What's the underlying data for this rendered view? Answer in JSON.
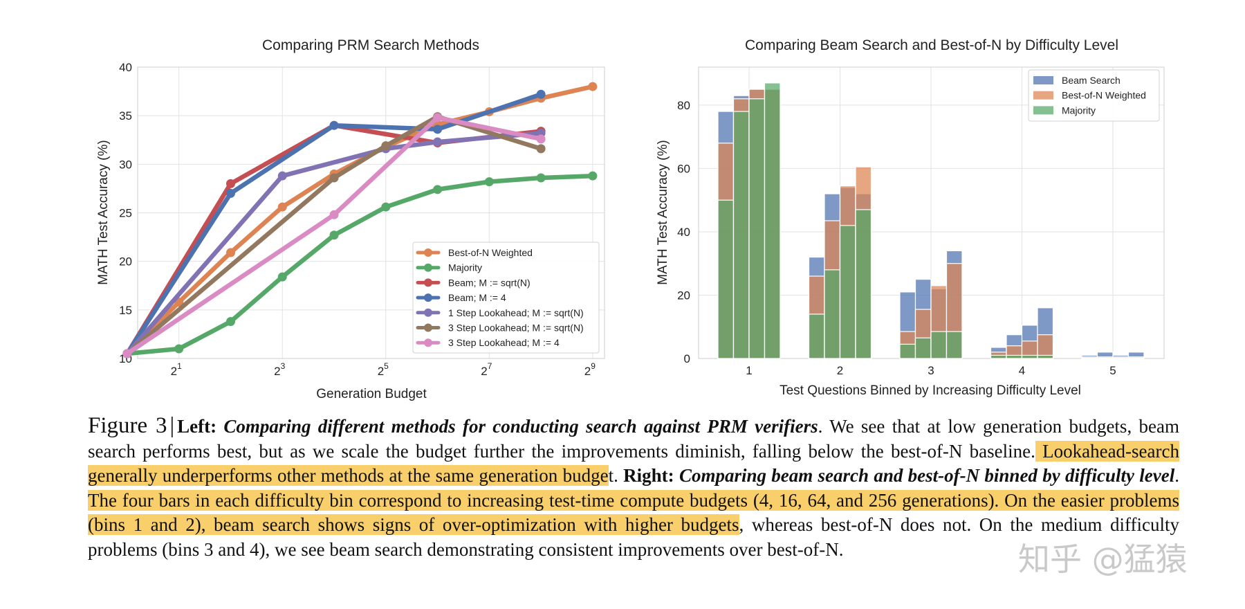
{
  "chart_data": [
    {
      "type": "line",
      "title": "Comparing PRM Search Methods",
      "xlabel": "Generation Budget",
      "ylabel": "MATH Test Accuracy (%)",
      "x_scale": "log2",
      "x": [
        1,
        4,
        16,
        64,
        256
      ],
      "x_ticks": [
        {
          "value": 2,
          "base": "2",
          "exp": "1"
        },
        {
          "value": 8,
          "base": "2",
          "exp": "3"
        },
        {
          "value": 32,
          "base": "2",
          "exp": "5"
        },
        {
          "value": 128,
          "base": "2",
          "exp": "7"
        },
        {
          "value": 512,
          "base": "2",
          "exp": "9"
        }
      ],
      "xlim": [
        1.15,
        600
      ],
      "ylim": [
        10,
        40
      ],
      "y_ticks": [
        10,
        15,
        20,
        25,
        30,
        35,
        40
      ],
      "grid": true,
      "legend_position": "bottom-right",
      "series": [
        {
          "name": "Best-of-N Weighted",
          "color": "#dd8452",
          "points": [
            [
              1,
              10.5
            ],
            [
              2,
              15.8
            ],
            [
              4,
              20.9
            ],
            [
              8,
              25.6
            ],
            [
              16,
              29.0
            ],
            [
              32,
              31.8
            ],
            [
              64,
              34.1
            ],
            [
              128,
              35.4
            ],
            [
              256,
              36.8
            ],
            [
              512,
              38.0
            ]
          ]
        },
        {
          "name": "Majority",
          "color": "#55a868",
          "points": [
            [
              1,
              10.5
            ],
            [
              2,
              11.0
            ],
            [
              4,
              13.8
            ],
            [
              8,
              18.4
            ],
            [
              16,
              22.7
            ],
            [
              32,
              25.6
            ],
            [
              64,
              27.4
            ],
            [
              128,
              28.2
            ],
            [
              256,
              28.6
            ],
            [
              512,
              28.8
            ]
          ]
        },
        {
          "name": "Beam; M := sqrt(N)",
          "color": "#c44e52",
          "points": [
            [
              1,
              10.5
            ],
            [
              4,
              28.0
            ],
            [
              16,
              34.0
            ],
            [
              64,
              32.2
            ],
            [
              256,
              33.4
            ]
          ]
        },
        {
          "name": "Beam; M := 4",
          "color": "#4c72b0",
          "points": [
            [
              1,
              10.5
            ],
            [
              4,
              27.0
            ],
            [
              16,
              34.0
            ],
            [
              64,
              33.6
            ],
            [
              256,
              37.2
            ]
          ]
        },
        {
          "name": "1 Step Lookahead; M := sqrt(N)",
          "color": "#8172b3",
          "points": [
            [
              1,
              10.5
            ],
            [
              8,
              28.8
            ],
            [
              32,
              31.6
            ],
            [
              64,
              32.3
            ],
            [
              256,
              33.2
            ]
          ]
        },
        {
          "name": "3 Step Lookahead; M := sqrt(N)",
          "color": "#937860",
          "points": [
            [
              1,
              10.5
            ],
            [
              16,
              28.6
            ],
            [
              32,
              31.9
            ],
            [
              64,
              34.9
            ],
            [
              256,
              31.6
            ]
          ]
        },
        {
          "name": "3 Step Lookahead; M := 4",
          "color": "#da8bc3",
          "points": [
            [
              1,
              10.5
            ],
            [
              16,
              24.8
            ],
            [
              64,
              34.8
            ],
            [
              256,
              32.6
            ]
          ]
        }
      ]
    },
    {
      "type": "bar",
      "title": "Comparing Beam Search and Best-of-N by Difficulty Level",
      "xlabel": "Test Questions Binned by Increasing Difficulty Level",
      "ylabel": "MATH Test Accuracy (%)",
      "categories": [
        "1",
        "2",
        "3",
        "4",
        "5"
      ],
      "budgets": [
        4,
        16,
        64,
        256
      ],
      "ylim": [
        0,
        92
      ],
      "y_ticks": [
        0,
        20,
        40,
        60,
        80
      ],
      "grid": true,
      "legend_position": "top-right",
      "series": [
        {
          "name": "Beam Search",
          "color": "#4c72b0",
          "values": [
            [
              78.0,
              83.0,
              85.0,
              85.0
            ],
            [
              32.0,
              52.0,
              54.0,
              52.0
            ],
            [
              21.0,
              25.0,
              22.0,
              34.0
            ],
            [
              3.5,
              7.5,
              10.5,
              16.0
            ],
            [
              1.0,
              2.0,
              1.0,
              2.0
            ]
          ]
        },
        {
          "name": "Best-of-N Weighted",
          "color": "#dd8452",
          "values": [
            [
              68.0,
              82.0,
              85.0,
              85.0
            ],
            [
              26.0,
              43.5,
              54.5,
              60.5
            ],
            [
              8.5,
              15.5,
              23.0,
              30.0
            ],
            [
              2.0,
              4.0,
              5.5,
              7.5
            ],
            [
              0.5,
              0.5,
              0.5,
              0.5
            ]
          ]
        },
        {
          "name": "Majority",
          "color": "#55a868",
          "values": [
            [
              50.0,
              78.0,
              82.0,
              87.0
            ],
            [
              14.0,
              28.0,
              42.0,
              47.0
            ],
            [
              4.5,
              6.5,
              8.5,
              8.5
            ],
            [
              1.0,
              1.0,
              1.0,
              1.0
            ],
            [
              0.2,
              0.2,
              0.2,
              0.2
            ]
          ]
        }
      ]
    }
  ],
  "caption": {
    "fig_no": "Figure 3",
    "sep": "|",
    "left_label": "Left:",
    "left_title": "Comparing different methods for conducting search against PRM verifiers",
    "s1": ". We see that at low generation budgets, beam search performs best, but as we scale the budget further the improvements diminish, falling below the best-of-N baseline",
    "s2_dot": ".",
    "s2_hl": " Lookahead-search generally underperforms other methods at the same generation budge",
    "s2_tail": "t. ",
    "right_label": "Right:",
    "right_title": "Comparing beam search and best-of-N binned by difficulty level",
    "s3": ". ",
    "s3_hl": "The four bars in each difficulty bin correspond to increasing test-time compute budgets (4, 16, 64, and 256 generations).",
    "s4_hl": " On the easier problems (bins 1 and 2), beam search shows signs of over-optimization with higher budgets",
    "s5": ", whereas best-of-N does not. On the medium difficulty problems (bins 3 and 4), we see beam search demonstrating consistent improvements over best-of-N."
  },
  "watermark": "知乎 @猛猿"
}
